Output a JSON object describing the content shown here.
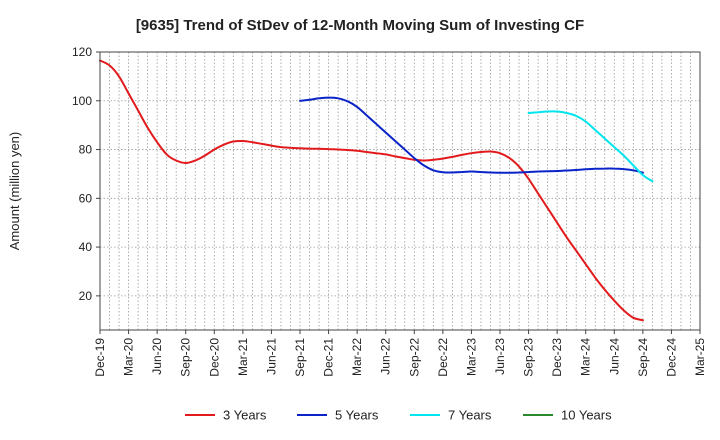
{
  "chart_data": {
    "type": "line",
    "title": "[9635]  Trend of StDev of 12-Month Moving Sum of Investing CF",
    "xlabel": "",
    "ylabel": "Amount (million yen)",
    "ylim": [
      6,
      120
    ],
    "yticks": [
      20,
      40,
      60,
      80,
      100,
      120
    ],
    "xlim": [
      "2019-12",
      "2025-03"
    ],
    "x_tick_labels": [
      "Dec-19",
      "Mar-20",
      "Jun-20",
      "Sep-20",
      "Dec-20",
      "Mar-21",
      "Jun-21",
      "Sep-21",
      "Dec-21",
      "Mar-22",
      "Jun-22",
      "Sep-22",
      "Dec-22",
      "Mar-23",
      "Jun-23",
      "Sep-23",
      "Dec-23",
      "Mar-24",
      "Jun-24",
      "Sep-24",
      "Dec-24",
      "Mar-25"
    ],
    "grid": true,
    "legend_position": "bottom",
    "series": [
      {
        "name": "3 Years",
        "color": "#e31a1c",
        "points": [
          [
            "2019-12",
            116.5
          ],
          [
            "2020-01",
            114.5
          ],
          [
            "2020-02",
            110
          ],
          [
            "2020-03",
            103
          ],
          [
            "2020-04",
            96
          ],
          [
            "2020-05",
            89
          ],
          [
            "2020-06",
            83
          ],
          [
            "2020-07",
            78
          ],
          [
            "2020-08",
            75.5
          ],
          [
            "2020-09",
            74.5
          ],
          [
            "2020-10",
            75.5
          ],
          [
            "2020-11",
            77.5
          ],
          [
            "2020-12",
            80
          ],
          [
            "2021-01",
            82
          ],
          [
            "2021-02",
            83.3
          ],
          [
            "2021-03",
            83.5
          ],
          [
            "2021-04",
            83
          ],
          [
            "2021-05",
            82.3
          ],
          [
            "2021-06",
            81.6
          ],
          [
            "2021-07",
            81
          ],
          [
            "2021-08",
            80.7
          ],
          [
            "2021-09",
            80.5
          ],
          [
            "2021-10",
            80.4
          ],
          [
            "2021-11",
            80.3
          ],
          [
            "2021-12",
            80.2
          ],
          [
            "2022-01",
            80
          ],
          [
            "2022-02",
            79.8
          ],
          [
            "2022-03",
            79.5
          ],
          [
            "2022-04",
            79
          ],
          [
            "2022-05",
            78.5
          ],
          [
            "2022-06",
            78
          ],
          [
            "2022-07",
            77.2
          ],
          [
            "2022-08",
            76.5
          ],
          [
            "2022-09",
            75.8
          ],
          [
            "2022-10",
            75.5
          ],
          [
            "2022-11",
            75.8
          ],
          [
            "2022-12",
            76.3
          ],
          [
            "2023-01",
            77
          ],
          [
            "2023-02",
            77.8
          ],
          [
            "2023-03",
            78.5
          ],
          [
            "2023-04",
            79
          ],
          [
            "2023-05",
            79.2
          ],
          [
            "2023-06",
            78.5
          ],
          [
            "2023-07",
            76.5
          ],
          [
            "2023-08",
            73
          ],
          [
            "2023-09",
            68
          ],
          [
            "2023-10",
            62
          ],
          [
            "2023-11",
            56
          ],
          [
            "2023-12",
            50
          ],
          [
            "2024-01",
            44
          ],
          [
            "2024-02",
            38.5
          ],
          [
            "2024-03",
            33
          ],
          [
            "2024-04",
            27.5
          ],
          [
            "2024-05",
            22.5
          ],
          [
            "2024-06",
            18
          ],
          [
            "2024-07",
            14
          ],
          [
            "2024-08",
            11
          ],
          [
            "2024-09",
            10
          ]
        ]
      },
      {
        "name": "5 Years",
        "color": "#0a24c8",
        "points": [
          [
            "2021-09",
            100
          ],
          [
            "2021-10",
            100.4
          ],
          [
            "2021-11",
            101
          ],
          [
            "2021-12",
            101.3
          ],
          [
            "2022-01",
            101
          ],
          [
            "2022-02",
            99.8
          ],
          [
            "2022-03",
            97.5
          ],
          [
            "2022-04",
            94
          ],
          [
            "2022-05",
            90.5
          ],
          [
            "2022-06",
            87
          ],
          [
            "2022-07",
            83.5
          ],
          [
            "2022-08",
            80
          ],
          [
            "2022-09",
            76.5
          ],
          [
            "2022-10",
            73.5
          ],
          [
            "2022-11",
            71.5
          ],
          [
            "2022-12",
            70.7
          ],
          [
            "2023-01",
            70.6
          ],
          [
            "2023-02",
            70.8
          ],
          [
            "2023-03",
            71
          ],
          [
            "2023-04",
            70.8
          ],
          [
            "2023-05",
            70.6
          ],
          [
            "2023-06",
            70.5
          ],
          [
            "2023-07",
            70.5
          ],
          [
            "2023-08",
            70.6
          ],
          [
            "2023-09",
            70.8
          ],
          [
            "2023-10",
            71
          ],
          [
            "2023-11",
            71.1
          ],
          [
            "2023-12",
            71.2
          ],
          [
            "2024-01",
            71.4
          ],
          [
            "2024-02",
            71.6
          ],
          [
            "2024-03",
            71.9
          ],
          [
            "2024-04",
            72.1
          ],
          [
            "2024-05",
            72.2
          ],
          [
            "2024-06",
            72.2
          ],
          [
            "2024-07",
            72
          ],
          [
            "2024-08",
            71.5
          ],
          [
            "2024-09",
            70.5
          ]
        ]
      },
      {
        "name": "7 Years",
        "color": "#00e5ee",
        "points": [
          [
            "2023-09",
            95
          ],
          [
            "2023-10",
            95.3
          ],
          [
            "2023-11",
            95.6
          ],
          [
            "2023-12",
            95.6
          ],
          [
            "2024-01",
            95
          ],
          [
            "2024-02",
            93.8
          ],
          [
            "2024-03",
            91.5
          ],
          [
            "2024-04",
            88
          ],
          [
            "2024-05",
            84.5
          ],
          [
            "2024-06",
            81
          ],
          [
            "2024-07",
            77.5
          ],
          [
            "2024-08",
            73.5
          ],
          [
            "2024-09",
            69.5
          ],
          [
            "2024-10",
            67
          ]
        ]
      },
      {
        "name": "10 Years",
        "color": "#2a8a2a",
        "points": []
      }
    ]
  }
}
